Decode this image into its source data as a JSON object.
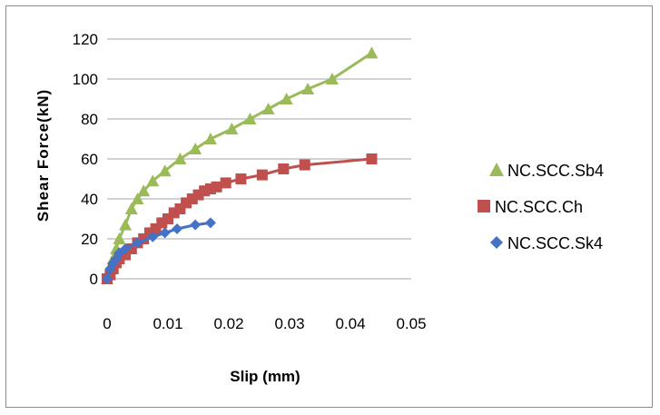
{
  "chart_data": {
    "type": "scatter",
    "title": "",
    "xlabel": "Slip (mm)",
    "ylabel": "Shear Force(kN)",
    "xlim": [
      0,
      0.05
    ],
    "ylim": [
      0,
      120
    ],
    "xticks": [
      0,
      0.01,
      0.02,
      0.03,
      0.04,
      0.05
    ],
    "xtick_labels": [
      "0",
      "0.01",
      "0.02",
      "0.03",
      "0.04",
      "0.05"
    ],
    "yticks": [
      0,
      20,
      40,
      60,
      80,
      100,
      120
    ],
    "ytick_labels": [
      "0",
      "20",
      "40",
      "60",
      "80",
      "100",
      "120"
    ],
    "grid": "horizontal",
    "legend_position": "right",
    "series": [
      {
        "name": "NC.SCC.Sb4",
        "color": "#9BBB59",
        "marker": "triangle",
        "x": [
          0,
          0.0005,
          0.001,
          0.0015,
          0.002,
          0.003,
          0.004,
          0.005,
          0.006,
          0.0075,
          0.0095,
          0.012,
          0.0145,
          0.017,
          0.0205,
          0.0235,
          0.0265,
          0.0295,
          0.033,
          0.037,
          0.0435
        ],
        "y": [
          0,
          5,
          10,
          15,
          20,
          27,
          35,
          40,
          44,
          49,
          54,
          60,
          65,
          70,
          75,
          80,
          85,
          90,
          95,
          100,
          113
        ]
      },
      {
        "name": "NC.SCC.Ch",
        "color": "#C0504D",
        "marker": "square",
        "x": [
          0,
          0.0005,
          0.001,
          0.0015,
          0.002,
          0.003,
          0.004,
          0.005,
          0.006,
          0.007,
          0.008,
          0.009,
          0.01,
          0.011,
          0.012,
          0.013,
          0.014,
          0.015,
          0.016,
          0.017,
          0.018,
          0.0195,
          0.022,
          0.0255,
          0.029,
          0.0325,
          0.0435
        ],
        "y": [
          0,
          2,
          5,
          8,
          10,
          12,
          15,
          18,
          20,
          23,
          25,
          28,
          30,
          33,
          35,
          38,
          40,
          42,
          44,
          45,
          46,
          48,
          50,
          52,
          55,
          57,
          60
        ]
      },
      {
        "name": "NC.SCC.Sk4",
        "color": "#4472C4",
        "marker": "diamond",
        "x": [
          0,
          0.0005,
          0.001,
          0.0015,
          0.002,
          0.003,
          0.005,
          0.0075,
          0.0095,
          0.0115,
          0.0145,
          0.017
        ],
        "y": [
          0,
          5,
          8,
          10,
          13,
          15,
          18,
          21,
          23,
          25,
          27,
          28
        ]
      }
    ]
  }
}
